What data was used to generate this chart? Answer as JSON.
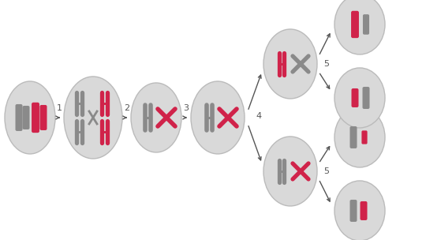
{
  "bg_color": "#ffffff",
  "cell_color": "#d9d9d9",
  "cell_edge_color": "#bbbbbb",
  "red_color": "#d0234a",
  "gray_color": "#8a8a8a",
  "arrow_color": "#555555",
  "label_color": "#555555",
  "label_fontsize": 8,
  "figw": 5.4,
  "figh": 3.04,
  "dpi": 100
}
